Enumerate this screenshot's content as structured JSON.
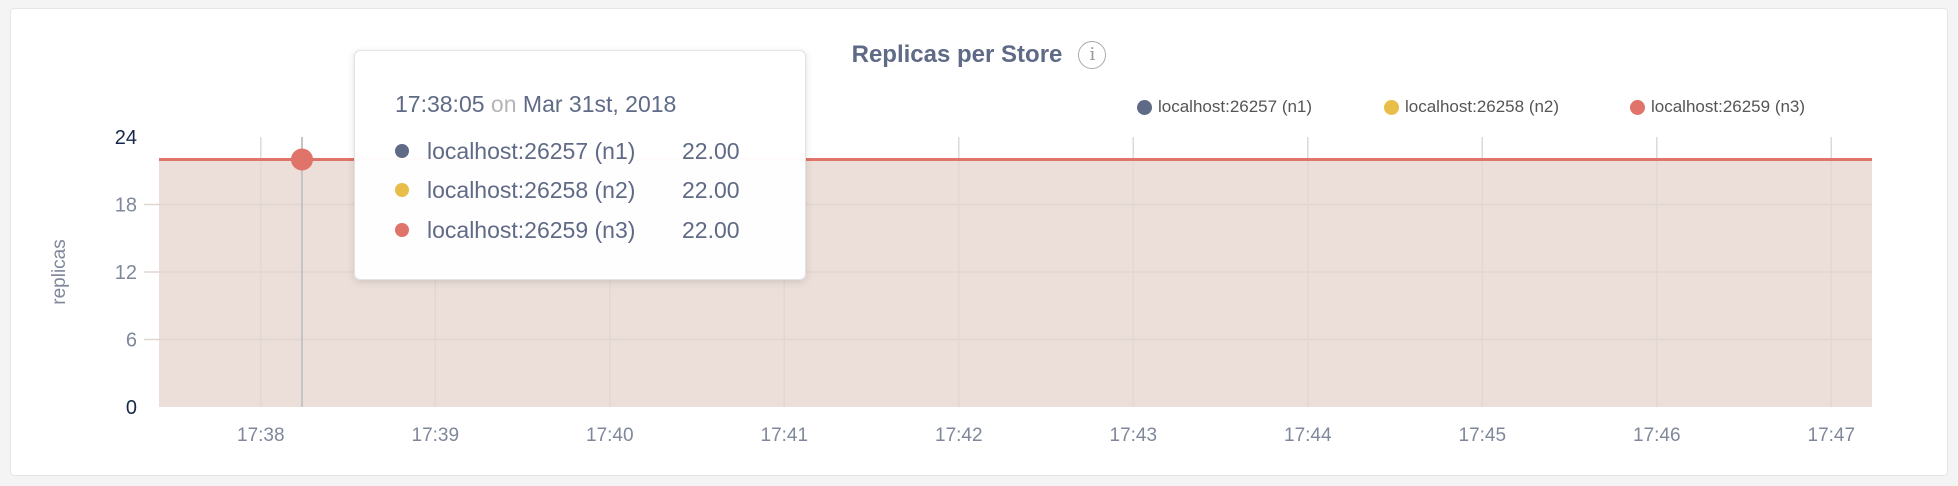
{
  "chart_data": {
    "type": "area",
    "title": "Replicas per Store",
    "ylabel": "replicas",
    "xlabel": "",
    "ylim": [
      0,
      24
    ],
    "yticks": [
      "0",
      "6",
      "12",
      "18",
      "24"
    ],
    "xlim": [
      "17:37:25",
      "17:47:14"
    ],
    "xticks": [
      "17:38",
      "17:39",
      "17:40",
      "17:41",
      "17:42",
      "17:43",
      "17:44",
      "17:45",
      "17:46",
      "17:47"
    ],
    "grid": true,
    "legend_position": "top-right",
    "series": [
      {
        "name": "localhost:26257 (n1)",
        "color": "#5f6a86",
        "x": [
          "17:37:25",
          "17:47:14"
        ],
        "values": [
          22,
          22
        ]
      },
      {
        "name": "localhost:26258 (n2)",
        "color": "#e9bd4a",
        "x": [
          "17:37:25",
          "17:47:14"
        ],
        "values": [
          22,
          22
        ]
      },
      {
        "name": "localhost:26259 (n3)",
        "color": "#e0736a",
        "x": [
          "17:37:25",
          "17:47:14"
        ],
        "values": [
          22,
          22
        ]
      }
    ]
  },
  "info_icon": "info-circle-icon",
  "tooltip": {
    "time": "17:38:05",
    "on": "on",
    "date": "Mar 31st, 2018",
    "rows": [
      {
        "label": "localhost:26257 (n1)",
        "value": "22.00",
        "color": "#5f6a86"
      },
      {
        "label": "localhost:26258 (n2)",
        "value": "22.00",
        "color": "#e9bd4a"
      },
      {
        "label": "localhost:26259 (n3)",
        "value": "22.00",
        "color": "#e0736a"
      }
    ]
  }
}
